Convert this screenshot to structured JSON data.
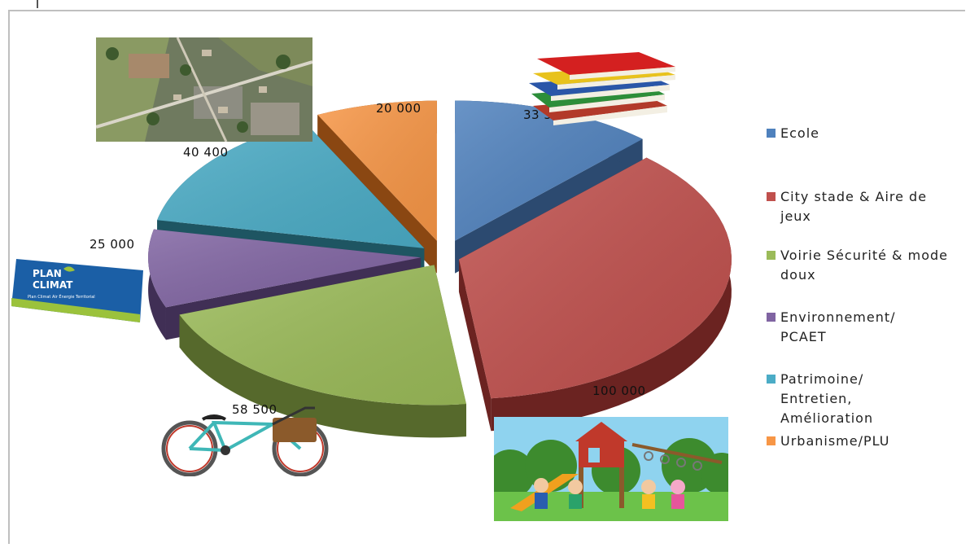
{
  "chart_data": {
    "type": "pie",
    "style": "3d exploded pie",
    "legend_position": "right",
    "slices": [
      {
        "label": "Ecole",
        "value": 33500,
        "display": "33 500",
        "color": "#4F81BD",
        "dark": "#2c4a70"
      },
      {
        "label": "City stade & Aire de jeux",
        "value": 100000,
        "display": "100 000",
        "color": "#C0504D",
        "dark": "#6b2321"
      },
      {
        "label": "Voirie Sécurité & mode doux",
        "value": 58500,
        "display": "58 500",
        "color": "#9BBB59",
        "dark": "#56692c"
      },
      {
        "label": "Environnement/ PCAET",
        "value": 25000,
        "display": "25 000",
        "color": "#8064A2",
        "dark": "#402f55"
      },
      {
        "label": "Patrimoine/ Entretien, Amélioration",
        "value": 40400,
        "display": "40 400",
        "color": "#4BACC6",
        "dark": "#1e5562"
      },
      {
        "label": "Urbanisme/PLU",
        "value": 20000,
        "display": "20 000",
        "color": "#F79646",
        "dark": "#8a4712"
      }
    ]
  },
  "legend": {
    "items": [
      "Ecole",
      "City stade & Aire de jeux",
      "Voirie Sécurité & mode doux",
      "Environnement/ PCAET",
      "Patrimoine/ Entretien, Amélioration",
      "Urbanisme/PLU"
    ]
  },
  "illustrations": {
    "plan_climat_lines": [
      "PLAN",
      "CLIMAT"
    ],
    "plan_climat_caption": "Plan Climat Air Énergie Territorial",
    "images": [
      "aerial-photo",
      "books-stack",
      "plan-climat-logo",
      "bicycle",
      "playground"
    ]
  }
}
